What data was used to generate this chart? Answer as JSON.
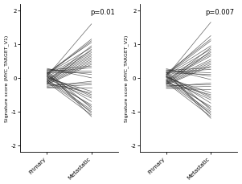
{
  "title_left": "p=0.01",
  "title_right": "p=0.007",
  "ylabel_left": "Signature score (MYC_TARGET_V1)",
  "ylabel_right": "Signature score (MYC_TARGET_V2)",
  "xtick_labels": [
    "Primary",
    "Metastatic"
  ],
  "ylim": [
    -2.2,
    2.2
  ],
  "yticks": [
    -2,
    -1,
    0,
    1,
    2
  ],
  "line_color": "#333333",
  "line_alpha": 0.75,
  "line_width": 0.5,
  "background_color": "#ffffff",
  "figsize": [
    3.01,
    2.3
  ],
  "dpi": 100,
  "pairs_v1_primary": [
    0.05,
    0.1,
    0.15,
    0.12,
    0.08,
    0.03,
    -0.02,
    -0.05,
    -0.08,
    -0.12,
    -0.15,
    -0.18,
    -0.2,
    0.18,
    0.22,
    0.25,
    0.28,
    -0.25,
    -0.28,
    -0.3,
    0.0,
    0.02,
    -0.03,
    0.07,
    -0.07,
    0.2,
    -0.1,
    0.13,
    -0.13,
    0.17,
    -0.17,
    0.23,
    -0.22,
    0.06,
    -0.06,
    0.11,
    -0.11,
    0.16,
    -0.16,
    0.04
  ],
  "pairs_v1_metastatic": [
    1.6,
    1.1,
    1.05,
    0.9,
    0.8,
    0.75,
    0.7,
    0.65,
    0.6,
    0.55,
    0.5,
    0.45,
    0.4,
    0.3,
    0.2,
    0.1,
    0.0,
    -0.1,
    -0.2,
    -0.3,
    -0.4,
    -0.5,
    -0.6,
    -0.7,
    -0.8,
    -0.9,
    -1.0,
    -1.05,
    -1.1,
    -1.15,
    0.85,
    0.35,
    -0.15,
    -0.55,
    -0.95,
    1.15,
    0.95,
    0.15,
    -0.45,
    -0.85
  ],
  "pairs_v2_primary": [
    0.04,
    0.09,
    0.14,
    0.11,
    0.07,
    0.02,
    -0.03,
    -0.06,
    -0.09,
    -0.13,
    -0.16,
    -0.19,
    -0.21,
    0.17,
    0.21,
    0.24,
    0.27,
    -0.26,
    -0.29,
    -0.31,
    0.01,
    0.03,
    -0.04,
    0.06,
    -0.08,
    0.19,
    -0.11,
    0.12,
    -0.14,
    0.16,
    -0.18,
    0.22,
    -0.23,
    0.05,
    -0.07,
    0.1,
    -0.12,
    0.15,
    -0.15,
    0.03
  ],
  "pairs_v2_metastatic": [
    1.65,
    1.25,
    1.15,
    0.95,
    0.85,
    0.75,
    0.7,
    0.65,
    0.55,
    0.5,
    0.45,
    0.4,
    0.35,
    0.25,
    0.15,
    0.05,
    -0.05,
    -0.15,
    -0.25,
    -0.35,
    -0.45,
    -0.55,
    -0.65,
    -0.75,
    -0.85,
    -0.95,
    -1.05,
    -1.1,
    -1.15,
    -1.2,
    0.8,
    0.3,
    -0.2,
    -0.6,
    -1.0,
    1.1,
    0.9,
    0.1,
    -0.5,
    -0.9
  ]
}
